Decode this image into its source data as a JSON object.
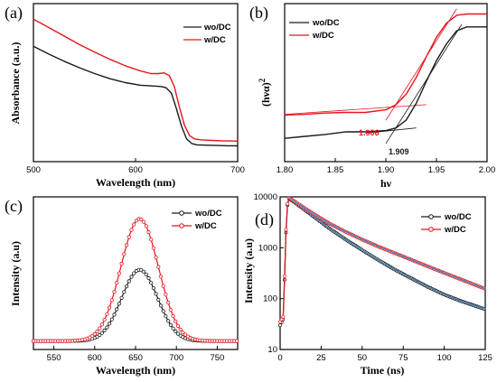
{
  "colors": {
    "wo": "#1a1a1a",
    "w": "#e8141c",
    "fit": "#3d7fb8",
    "tangent": "#e8141c"
  },
  "chart_data": [
    {
      "panel": "(a)",
      "type": "line",
      "xlabel": "Wavelength (nm)",
      "ylabel": "Absorbance (a.u.)",
      "xlim": [
        500,
        700
      ],
      "xticks": [
        "500",
        "600",
        "700"
      ],
      "yticks_shown": false,
      "legend": {
        "position": "top-right",
        "entries": [
          "wo/DC",
          "w/DC"
        ]
      },
      "series": [
        {
          "name": "wo/DC",
          "color": "#1a1a1a",
          "x": [
            500,
            515,
            530,
            545,
            560,
            575,
            590,
            605,
            615,
            625,
            630,
            635,
            640,
            645,
            650,
            655,
            660,
            670,
            680,
            690,
            700
          ],
          "y": [
            0.79,
            0.73,
            0.675,
            0.625,
            0.58,
            0.54,
            0.51,
            0.49,
            0.485,
            0.48,
            0.47,
            0.43,
            0.31,
            0.175,
            0.075,
            0.04,
            0.03,
            0.027,
            0.025,
            0.023,
            0.022
          ]
        },
        {
          "name": "w/DC",
          "color": "#e8141c",
          "x": [
            500,
            515,
            530,
            545,
            560,
            575,
            590,
            605,
            615,
            622,
            628,
            633,
            638,
            643,
            648,
            653,
            658,
            665,
            675,
            685,
            700
          ],
          "y": [
            1.0,
            0.935,
            0.87,
            0.805,
            0.745,
            0.69,
            0.64,
            0.6,
            0.58,
            0.58,
            0.585,
            0.565,
            0.48,
            0.32,
            0.18,
            0.1,
            0.075,
            0.068,
            0.064,
            0.061,
            0.058
          ]
        }
      ]
    },
    {
      "panel": "(b)",
      "type": "line",
      "xlabel": "hν",
      "ylabel": "(hνα)²",
      "ylabel_base": "(hνα)",
      "ylabel_sup": "2",
      "xlim": [
        1.8,
        2.0
      ],
      "xticks": [
        "1.80",
        "1.85",
        "1.90",
        "1.95",
        "2.00"
      ],
      "yticks_shown": false,
      "legend": {
        "position": "top-left",
        "entries": [
          "wo/DC",
          "w/DC"
        ]
      },
      "annotations": [
        {
          "text": "1.906",
          "color": "#e8141c"
        },
        {
          "text": "1.909",
          "color": "#1a1a1a"
        }
      ],
      "series": [
        {
          "name": "wo/DC",
          "color": "#1a1a1a",
          "x": [
            1.8,
            1.82,
            1.84,
            1.86,
            1.88,
            1.9,
            1.91,
            1.92,
            1.93,
            1.94,
            1.95,
            1.96,
            1.97,
            1.98,
            1.99,
            2.0
          ],
          "y": [
            0.0,
            0.015,
            0.03,
            0.05,
            0.05,
            0.06,
            0.08,
            0.14,
            0.27,
            0.44,
            0.6,
            0.73,
            0.83,
            0.86,
            0.86,
            0.86
          ]
        },
        {
          "name": "w/DC",
          "color": "#e8141c",
          "x": [
            1.8,
            1.82,
            1.84,
            1.86,
            1.88,
            1.9,
            1.91,
            1.92,
            1.93,
            1.94,
            1.95,
            1.96,
            1.97,
            1.98,
            1.99,
            2.0
          ],
          "y": [
            0.18,
            0.185,
            0.195,
            0.2,
            0.2,
            0.22,
            0.26,
            0.34,
            0.47,
            0.63,
            0.78,
            0.89,
            0.95,
            0.96,
            0.96,
            0.96
          ]
        }
      ]
    },
    {
      "panel": "(c)",
      "type": "line",
      "xlabel": "Wavelength (nm)",
      "ylabel": "Intensity (a.u)",
      "xlim": [
        525,
        775
      ],
      "xticks": [
        "550",
        "600",
        "650",
        "700",
        "750"
      ],
      "yticks_shown": false,
      "legend": {
        "position": "top-right",
        "entries": [
          "wo/DC",
          "w/DC"
        ]
      },
      "series": [
        {
          "name": "wo/DC",
          "color": "#1a1a1a",
          "peak_x": 655,
          "peak_y": 0.42,
          "sigma": 22,
          "baseline": 0.0
        },
        {
          "name": "w/DC",
          "color": "#e8141c",
          "peak_x": 655,
          "peak_y": 0.72,
          "sigma": 23,
          "baseline": 0.0
        }
      ]
    },
    {
      "panel": "(d)",
      "type": "line",
      "xlabel": "Time (ns)",
      "ylabel": "Intensity (a.u)",
      "xlim": [
        0,
        125
      ],
      "ylim": [
        10,
        10000
      ],
      "yscale": "log",
      "xticks": [
        "0",
        "25",
        "50",
        "75",
        "100",
        "125"
      ],
      "yticks": [
        "10",
        "100",
        "1000",
        "10000"
      ],
      "legend": {
        "position": "top-right",
        "entries": [
          "wo/DC",
          "w/DC"
        ]
      },
      "series": [
        {
          "name": "wo/DC",
          "color": "#1a1a1a",
          "x": [
            0,
            2,
            3,
            4,
            5,
            10,
            20,
            30,
            40,
            50,
            60,
            70,
            80,
            90,
            100,
            110,
            120,
            125
          ],
          "y": [
            30,
            40,
            500,
            5000,
            9500,
            7300,
            4200,
            2400,
            1450,
            900,
            570,
            370,
            250,
            170,
            120,
            90,
            70,
            62
          ]
        },
        {
          "name": "w/DC",
          "color": "#e8141c",
          "x": [
            0,
            2,
            3,
            4,
            5,
            10,
            20,
            30,
            40,
            50,
            60,
            70,
            80,
            90,
            100,
            110,
            120,
            125
          ],
          "y": [
            35,
            45,
            600,
            5500,
            9800,
            7700,
            4700,
            3000,
            2050,
            1450,
            1050,
            780,
            580,
            430,
            320,
            240,
            180,
            155
          ]
        }
      ]
    }
  ]
}
